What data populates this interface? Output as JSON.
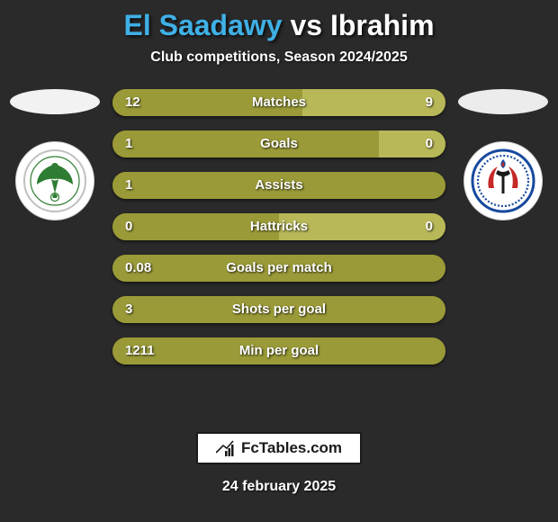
{
  "colors": {
    "background": "#2a2a2a",
    "player1_accent": "#3fb0e6",
    "player2_accent": "#ffffff",
    "bar_bg": "#7a7a2a",
    "bar_fill_left": "#9a9a38",
    "bar_fill_right": "#b8b858",
    "ellipse_left": "#f2f2f2",
    "ellipse_right": "#ececec",
    "text_white": "#ffffff",
    "badge_border": "#1a1a1a",
    "club1_primary": "#2e7d32",
    "club1_ring": "#c0c0c0",
    "club2_ring": "#174a9e",
    "club2_red": "#c62828",
    "club2_torch": "#1a1a1a"
  },
  "header": {
    "player1": "El Saadawy",
    "vs": "vs",
    "player2": "Ibrahim",
    "subtitle": "Club competitions, Season 2024/2025"
  },
  "bars": [
    {
      "label": "Matches",
      "left": "12",
      "right": "9",
      "left_pct": 57,
      "right_pct": 43
    },
    {
      "label": "Goals",
      "left": "1",
      "right": "0",
      "left_pct": 80,
      "right_pct": 20
    },
    {
      "label": "Assists",
      "left": "1",
      "right": "",
      "left_pct": 100,
      "right_pct": 0
    },
    {
      "label": "Hattricks",
      "left": "0",
      "right": "0",
      "left_pct": 50,
      "right_pct": 50
    },
    {
      "label": "Goals per match",
      "left": "0.08",
      "right": "",
      "left_pct": 100,
      "right_pct": 0
    },
    {
      "label": "Shots per goal",
      "left": "3",
      "right": "",
      "left_pct": 100,
      "right_pct": 0
    },
    {
      "label": "Min per goal",
      "left": "1211",
      "right": "",
      "left_pct": 100,
      "right_pct": 0
    }
  ],
  "footer": {
    "brand": "FcTables.com",
    "date": "24 february 2025"
  }
}
